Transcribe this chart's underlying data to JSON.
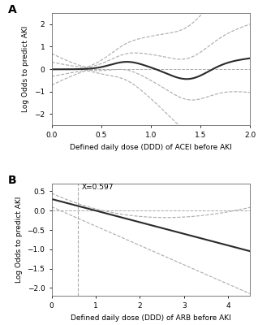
{
  "panel_A": {
    "label": "A",
    "xlabel": "Defined daily dose (DDD) of ACEI before AKI",
    "ylabel": "Log Odds to predict AKI",
    "xlim": [
      0.0,
      2.0
    ],
    "ylim": [
      -2.5,
      2.5
    ],
    "yticks": [
      -2,
      -1,
      0,
      1,
      2
    ],
    "xticks": [
      0.0,
      0.5,
      1.0,
      1.5,
      2.0
    ],
    "hline_y": 0,
    "main_color": "#2a2a2a",
    "ci_color": "#aaaaaa",
    "bg_color": "#ffffff"
  },
  "panel_B": {
    "label": "B",
    "xlabel": "Defined daily dose (DDD) of ARB before AKI",
    "ylabel": "Log Odds to predict AKI",
    "xlim": [
      0,
      4.5
    ],
    "ylim": [
      -2.2,
      0.7
    ],
    "yticks": [
      -2.0,
      -1.5,
      -1.0,
      -0.5,
      0.0,
      0.5
    ],
    "xticks": [
      0,
      1,
      2,
      3,
      4
    ],
    "vline_x": 0.597,
    "vline_label": "X=0.597",
    "hline_y": 0,
    "main_color": "#2a2a2a",
    "ci_color": "#aaaaaa",
    "bg_color": "#ffffff"
  }
}
